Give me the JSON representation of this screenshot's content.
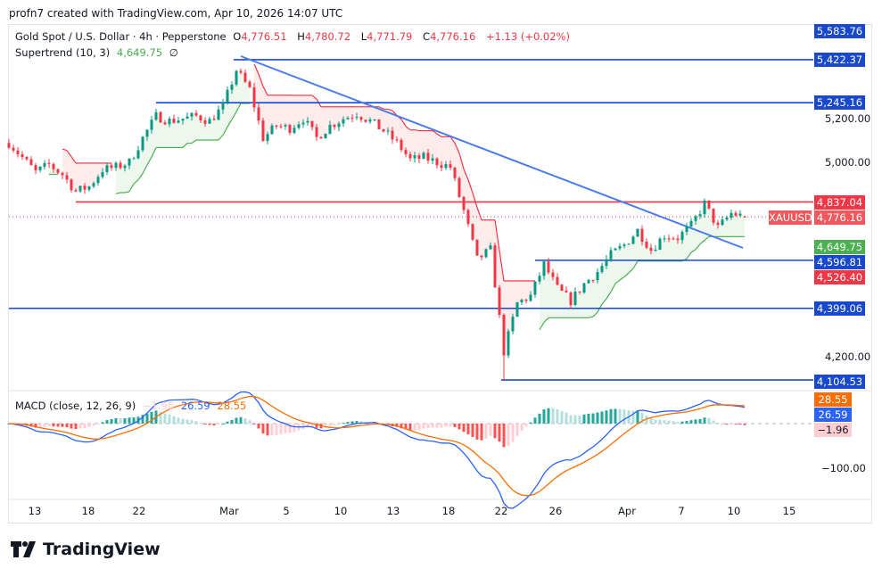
{
  "attribution": "profn7 created with TradingView.com, Apr 10, 2026 14:07 UTC",
  "legend": {
    "symbol": "Gold Spot / U.S. Dollar · 4h · Pepperstone",
    "o_label": "O",
    "o": "4,776.51",
    "h_label": "H",
    "h": "4,780.72",
    "l_label": "L",
    "l": "4,771.79",
    "c_label": "C",
    "c": "4,776.16",
    "change": "+1.13 (+0.02%)",
    "supertrend": "Supertrend (10, 3)",
    "supertrend_value": "4,649.75",
    "supertrend_extra": "∅"
  },
  "macd_legend": {
    "label": "MACD (close, 12, 26, 9)",
    "hist": "−1.96",
    "macd": "26.59",
    "signal": "28.55"
  },
  "symbol_tag": "XAUUSD",
  "brand": "TradingView",
  "colors": {
    "up": "#089981",
    "down": "#f23645",
    "level_blue": "#1848cc",
    "level_red": "#f23645",
    "trendline": "#2962ff",
    "supertrend_up": "#4caf50",
    "supertrend_down": "#f23645",
    "macd": "#2962ff",
    "signal": "#ff6d00"
  },
  "chart_data": {
    "type": "candlestick",
    "timeframe": "4h",
    "x_ticks": [
      "13",
      "18",
      "22",
      "Mar",
      "5",
      "10",
      "13",
      "18",
      "22",
      "26",
      "Apr",
      "7",
      "10",
      "15"
    ],
    "y_ticks": [
      "5,200.00",
      "5,000.00",
      "4,200.00"
    ],
    "macd_y_ticks": [
      "−100.00"
    ],
    "approx_close_path": [
      5080,
      5020,
      4960,
      4990,
      4950,
      4880,
      4900,
      4970,
      4980,
      5000,
      5100,
      5190,
      5170,
      5180,
      5190,
      5170,
      5230,
      5380,
      5300,
      5100,
      5150,
      5140,
      5180,
      5100,
      5150,
      5180,
      5200,
      5170,
      5130,
      5080,
      5010,
      5020,
      5000,
      4980,
      4800,
      4600,
      4640,
      4220,
      4420,
      4450,
      4580,
      4480,
      4430,
      4500,
      4550,
      4620,
      4660,
      4720,
      4640,
      4700,
      4690,
      4740,
      4830,
      4730,
      4790,
      4776
    ],
    "levels": [
      {
        "value": 5583.76,
        "label": "5,583.76",
        "color": "#1848cc"
      },
      {
        "value": 5422.37,
        "label": "5,422.37",
        "color": "#1848cc"
      },
      {
        "value": 5245.16,
        "label": "5,245.16",
        "color": "#1848cc"
      },
      {
        "value": 4837.04,
        "label": "4,837.04",
        "color": "#f23645"
      },
      {
        "value": 4776.16,
        "label": "4,776.16",
        "color": "#f0585c"
      },
      {
        "value": 4649.75,
        "label": "4,649.75",
        "color": "#4caf50"
      },
      {
        "value": 4596.81,
        "label": "4,596.81",
        "color": "#1848cc"
      },
      {
        "value": 4526.4,
        "label": "4,526.40",
        "color": "#f23645"
      },
      {
        "value": 4399.06,
        "label": "4,399.06",
        "color": "#1848cc"
      },
      {
        "value": 4104.53,
        "label": "4,104.53",
        "color": "#1848cc"
      }
    ],
    "macd_tags": [
      {
        "value": 28.55,
        "label": "28.55",
        "color": "#ff6d00"
      },
      {
        "value": 26.59,
        "label": "26.59",
        "color": "#2962ff"
      },
      {
        "value": -1.96,
        "label": "−1.96",
        "color": "#ffcdd2"
      }
    ],
    "trendline": [
      {
        "date": "Mar 1",
        "price": 5430
      },
      {
        "date": "Apr 10",
        "price": 4640
      }
    ]
  }
}
